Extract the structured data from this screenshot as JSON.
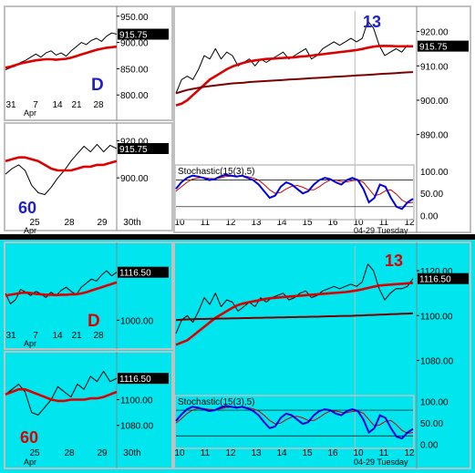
{
  "colors": {
    "es_background": "#ffffff",
    "bond_background": "#00e5ee",
    "frame": "#c0c0c0",
    "divider": "#000000",
    "price_line": "#000000",
    "fast_ma": "#dd0000",
    "slow_ma": "#7a0000",
    "stoch_k": "#0000dd",
    "stoch_d": "#cc0000",
    "es_tag": "#1f1fcc",
    "bond_tag": "#dd0000",
    "price_box": "#000000",
    "price_box_text": "#ffffff"
  },
  "chart_data": [
    {
      "name": "es-daily",
      "type": "line",
      "tag": "D",
      "last_price_label": "915.75",
      "y_ticks": [
        "950.00",
        "900.00",
        "850.00",
        "800.00"
      ],
      "ylim": [
        790,
        960
      ],
      "x_tick_labels": [
        "31",
        "7",
        "14",
        "21",
        "28"
      ],
      "x_sub_label": "Apr",
      "series": [
        {
          "name": "price",
          "role": "price",
          "values": [
            848,
            852,
            855,
            862,
            866,
            872,
            878,
            872,
            880,
            884,
            876,
            880,
            874,
            884,
            892,
            900,
            896,
            904,
            908,
            902,
            912,
            918,
            915.75
          ]
        },
        {
          "name": "ma",
          "role": "fast_ma",
          "values": [
            852,
            854,
            857,
            860,
            862,
            864,
            866,
            867,
            868,
            868,
            867,
            868,
            869,
            871,
            874,
            877,
            880,
            883,
            886,
            888,
            890,
            891,
            892
          ]
        }
      ]
    },
    {
      "name": "es-60min",
      "type": "line",
      "tag": "60",
      "last_price_label": "915.75",
      "y_ticks": [
        "920.00",
        "900.00"
      ],
      "ylim": [
        880,
        928
      ],
      "x_tick_labels": [
        "25",
        "28",
        "29",
        "30th"
      ],
      "x_sub_label": "Apr",
      "series": [
        {
          "name": "price",
          "role": "price",
          "values": [
            902,
            905,
            907,
            904,
            896,
            892,
            891,
            895,
            900,
            904,
            909,
            913,
            917,
            914,
            918,
            914,
            917.5,
            915.75
          ]
        },
        {
          "name": "ma",
          "role": "fast_ma",
          "values": [
            909,
            910,
            911,
            911,
            910,
            909,
            907,
            905,
            904,
            904,
            904,
            905,
            906,
            906,
            907,
            907,
            908,
            909
          ]
        }
      ]
    },
    {
      "name": "es-13min",
      "type": "line",
      "tag": "13",
      "last_price_label": "915.75",
      "y_ticks": [
        "920.00",
        "910.00",
        "900.00",
        "890.00"
      ],
      "ylim": [
        883,
        926
      ],
      "x_tick_labels": [
        "10",
        "11",
        "12",
        "13",
        "14",
        "15",
        "16",
        "10",
        "11",
        "12"
      ],
      "x_sub_label": "04-29 Tuesday",
      "series": [
        {
          "name": "price",
          "role": "price",
          "values": [
            902,
            906,
            907,
            906,
            909,
            913,
            912,
            915,
            912,
            914,
            913,
            910,
            911,
            912,
            910,
            912,
            911,
            912,
            913,
            914,
            912,
            913,
            914,
            915,
            912,
            913,
            915,
            916,
            917,
            916,
            917,
            918,
            917,
            918,
            923,
            921,
            916,
            913,
            914,
            915,
            914,
            916,
            915.75
          ]
        },
        {
          "name": "fast ma",
          "role": "fast_ma",
          "values": [
            898.5,
            899,
            900,
            901.5,
            903,
            904.5,
            906,
            907,
            908,
            909,
            909.8,
            910.4,
            910.9,
            911.3,
            911.6,
            911.8,
            912,
            912.1,
            912.2,
            912.3,
            912.4,
            912.5,
            912.7,
            912.8,
            913,
            913.2,
            913.4,
            913.6,
            913.8,
            914,
            914.2,
            914.4,
            914.6,
            914.9,
            915.3,
            915.6,
            915.8,
            915.8,
            915.8,
            915.7,
            915.7,
            915.7,
            915.7
          ]
        },
        {
          "name": "slow ma",
          "role": "slow_ma",
          "values": [
            902,
            902.5,
            903,
            903.3,
            903.6,
            903.9,
            904.1,
            904.3,
            904.5,
            904.7,
            904.9,
            905,
            905.1,
            905.3,
            905.4,
            905.5,
            905.6,
            905.7,
            905.8,
            905.9,
            906,
            906.1,
            906.2,
            906.3,
            906.4,
            906.5,
            906.6,
            906.7,
            906.8,
            906.9,
            907,
            907.1,
            907.2,
            907.3,
            907.4,
            907.5,
            907.6,
            907.7,
            907.8,
            907.9,
            908,
            908.1,
            908.2
          ]
        }
      ],
      "stochastic": {
        "title": "Stochastic(15(3),5)",
        "y_ticks": [
          "100.00",
          "50.00",
          "0.00"
        ],
        "ylim": [
          -5,
          110
        ],
        "k": [
          60,
          75,
          85,
          90,
          88,
          85,
          80,
          82,
          88,
          92,
          90,
          88,
          90,
          85,
          80,
          70,
          55,
          40,
          45,
          65,
          75,
          70,
          60,
          50,
          55,
          70,
          80,
          85,
          82,
          75,
          70,
          80,
          85,
          80,
          60,
          30,
          40,
          70,
          65,
          40,
          20,
          15,
          30,
          38
        ],
        "d": [
          55,
          65,
          75,
          82,
          85,
          86,
          84,
          83,
          85,
          88,
          89,
          89,
          89,
          88,
          85,
          80,
          70,
          58,
          50,
          52,
          60,
          66,
          68,
          64,
          58,
          58,
          65,
          74,
          80,
          80,
          77,
          76,
          79,
          80,
          75,
          60,
          45,
          48,
          56,
          58,
          48,
          35,
          28,
          30
        ]
      }
    },
    {
      "name": "bond-daily",
      "type": "line",
      "tag": "D",
      "last_price_label": "1116.50",
      "y_ticks": [
        "1000.00"
      ],
      "ylim": [
        950,
        1180
      ],
      "x_tick_labels": [
        "31",
        "7",
        "14",
        "21",
        "28"
      ],
      "x_sub_label": "Apr",
      "series": [
        {
          "name": "price",
          "role": "price",
          "values": [
            1065,
            1040,
            1050,
            1075,
            1068,
            1060,
            1070,
            1064,
            1055,
            1068,
            1060,
            1072,
            1080,
            1070,
            1062,
            1080,
            1090,
            1100,
            1095,
            1110,
            1120,
            1108,
            1116.5
          ]
        },
        {
          "name": "ma",
          "role": "fast_ma",
          "values": [
            1060,
            1062,
            1064,
            1066,
            1067,
            1066,
            1064,
            1063,
            1062,
            1062,
            1061,
            1062,
            1062,
            1063,
            1063,
            1065,
            1068,
            1072,
            1076,
            1080,
            1084,
            1088,
            1092
          ]
        }
      ]
    },
    {
      "name": "bond-60min",
      "type": "line",
      "tag": "60",
      "last_price_label": "1116.50",
      "y_ticks": [
        "1100.00",
        "1080.00"
      ],
      "ylim": [
        1060,
        1135
      ],
      "x_tick_labels": [
        "25",
        "28",
        "29",
        "30th"
      ],
      "x_sub_label": "Apr",
      "series": [
        {
          "name": "price",
          "role": "price",
          "values": [
            1104,
            1108,
            1112,
            1106,
            1090,
            1088,
            1094,
            1100,
            1110,
            1106,
            1102,
            1112,
            1108,
            1118,
            1114,
            1122,
            1114,
            1116.5
          ]
        },
        {
          "name": "ma",
          "role": "fast_ma",
          "values": [
            1104,
            1106,
            1108,
            1108,
            1106,
            1104,
            1102,
            1100,
            1099,
            1099,
            1100,
            1100,
            1100,
            1101,
            1101,
            1102,
            1104,
            1106
          ]
        }
      ]
    },
    {
      "name": "bond-13min",
      "type": "line",
      "tag": "13",
      "last_price_label": "1116.50",
      "y_ticks": [
        "1120.00",
        "1100.00",
        "1080.00"
      ],
      "ylim": [
        1066,
        1131
      ],
      "x_tick_labels": [
        "10",
        "11",
        "12",
        "13",
        "14",
        "15",
        "16",
        "10",
        "11",
        "12"
      ],
      "x_sub_label": "04-29 Tuesday",
      "series": [
        {
          "name": "price",
          "role": "price",
          "values": [
            1092,
            1098,
            1100,
            1097,
            1102,
            1108,
            1105,
            1110,
            1104,
            1107,
            1106,
            1102,
            1104,
            1106,
            1104,
            1108,
            1106,
            1108,
            1109,
            1110,
            1107,
            1108,
            1110,
            1111,
            1108,
            1109,
            1111,
            1112,
            1113,
            1112,
            1113,
            1114,
            1113,
            1115,
            1123,
            1120,
            1112,
            1107,
            1110,
            1112,
            1112,
            1113,
            1116.5
          ]
        },
        {
          "name": "fast ma",
          "role": "fast_ma",
          "values": [
            1087,
            1088,
            1089,
            1091,
            1093,
            1095,
            1097,
            1099,
            1100.5,
            1102,
            1103.5,
            1104.7,
            1105.5,
            1106,
            1106.5,
            1107,
            1107.5,
            1107.8,
            1108,
            1108.3,
            1108.5,
            1108.7,
            1108.9,
            1109.1,
            1109.3,
            1109.5,
            1109.7,
            1109.9,
            1110.1,
            1110.3,
            1110.5,
            1110.8,
            1111.2,
            1111.7,
            1112.3,
            1112.9,
            1113.4,
            1113.6,
            1113.8,
            1114,
            1114.2,
            1114.4,
            1114.6
          ]
        },
        {
          "name": "slow ma",
          "role": "slow_ma",
          "values": [
            1098,
            1098.2,
            1098.3,
            1098.4,
            1098.5,
            1098.5,
            1098.6,
            1098.6,
            1098.7,
            1098.7,
            1098.8,
            1098.8,
            1098.9,
            1098.9,
            1099,
            1099,
            1099.1,
            1099.1,
            1099.2,
            1099.2,
            1099.3,
            1099.3,
            1099.4,
            1099.4,
            1099.5,
            1099.5,
            1099.6,
            1099.7,
            1099.7,
            1099.8,
            1099.9,
            1099.9,
            1100,
            1100.1,
            1100.2,
            1100.3,
            1100.4,
            1100.5,
            1100.6,
            1100.7,
            1100.8,
            1100.9,
            1101
          ]
        }
      ],
      "stochastic": {
        "title": "Stochastic(15(3),5)",
        "y_ticks": [
          "100.00",
          "50.00",
          "0.00"
        ],
        "ylim": [
          -5,
          110
        ],
        "k": [
          55,
          70,
          82,
          88,
          86,
          82,
          78,
          80,
          86,
          90,
          88,
          86,
          88,
          84,
          78,
          68,
          52,
          38,
          42,
          62,
          72,
          68,
          58,
          48,
          52,
          68,
          78,
          82,
          80,
          72,
          68,
          78,
          82,
          78,
          58,
          28,
          38,
          68,
          62,
          38,
          18,
          14,
          28,
          36
        ],
        "d": [
          50,
          60,
          72,
          80,
          84,
          84,
          82,
          81,
          83,
          86,
          87,
          87,
          87,
          86,
          83,
          78,
          68,
          56,
          48,
          50,
          58,
          64,
          66,
          62,
          56,
          56,
          63,
          72,
          78,
          78,
          75,
          74,
          77,
          78,
          73,
          58,
          43,
          46,
          54,
          56,
          46,
          33,
          26,
          28
        ]
      }
    }
  ]
}
